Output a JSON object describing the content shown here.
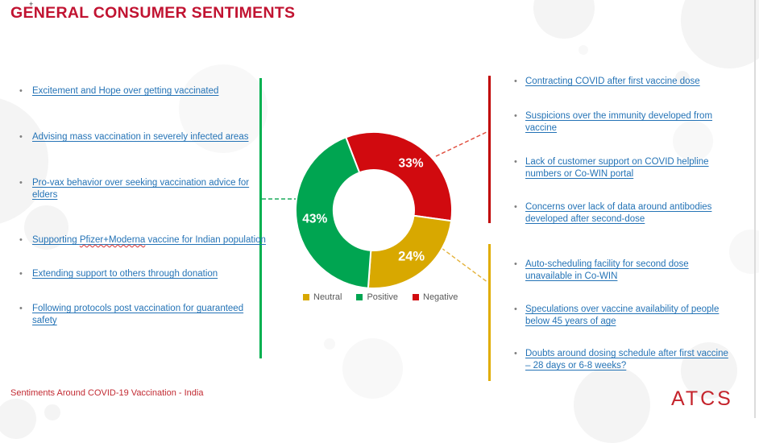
{
  "slide": {
    "title": "GENERAL CONSUMER SENTIMENTS",
    "footer": "Sentiments Around COVID-19 Vaccination - India",
    "logo_text": "ATCS",
    "cursor_artifact": "+"
  },
  "colors": {
    "title_red": "#C11331",
    "footer_red": "#C22B33",
    "logo_red": "#C5242C",
    "link_blue": "#2473B6",
    "positive_green": "#00A551",
    "negative_red": "#D10A0F",
    "neutral_yellow": "#D8A800",
    "positive_line": "#00B050",
    "negative_line": "#C00000",
    "neutral_line": "#E0AC00",
    "legend_text": "#595959"
  },
  "positive_list": {
    "items": [
      "Excitement and Hope over getting vaccinated",
      "Advising mass vaccination in severely infected areas",
      "Pro-vax behavior over seeking vaccination advice for\nelders",
      {
        "prefix": "Supporting ",
        "word": "Pfizer+Moderna",
        "suffix": " vaccine for Indian population"
      },
      "Extending support to others through donation",
      "Following protocols post vaccination for guaranteed\nsafety"
    ]
  },
  "negative_list": {
    "items": [
      "Contracting COVID after first vaccine dose",
      "Suspicions over the immunity developed from\nvaccine",
      "Lack of customer support on COVID helpline\nnumbers or Co-WIN portal",
      "Concerns over lack of data around antibodies\ndeveloped after second-dose",
      "Auto-scheduling facility for second dose\nunavailable in Co-WIN",
      "Speculations over vaccine availability of people\nbelow 45 years of age",
      "Doubts around dosing schedule after first vaccine\n– 28 days or 6-8 weeks?"
    ]
  },
  "chart_data": {
    "type": "pie",
    "donut": true,
    "title": "",
    "start_angle_deg": -21,
    "segments": [
      {
        "label": "Negative",
        "value": 33,
        "display": "33%",
        "color": "#D10A0F",
        "emphasis": false
      },
      {
        "label": "Neutral",
        "value": 24,
        "display": "24%",
        "color": "#D8A800",
        "emphasis": true
      },
      {
        "label": "Positive",
        "value": 43,
        "display": "43%",
        "color": "#00A551",
        "emphasis": false
      }
    ],
    "legend": [
      {
        "label": "Neutral",
        "color": "#D8A800"
      },
      {
        "label": "Positive",
        "color": "#00A551"
      },
      {
        "label": "Negative",
        "color": "#D10A0F"
      }
    ],
    "legend_position": "bottom"
  }
}
